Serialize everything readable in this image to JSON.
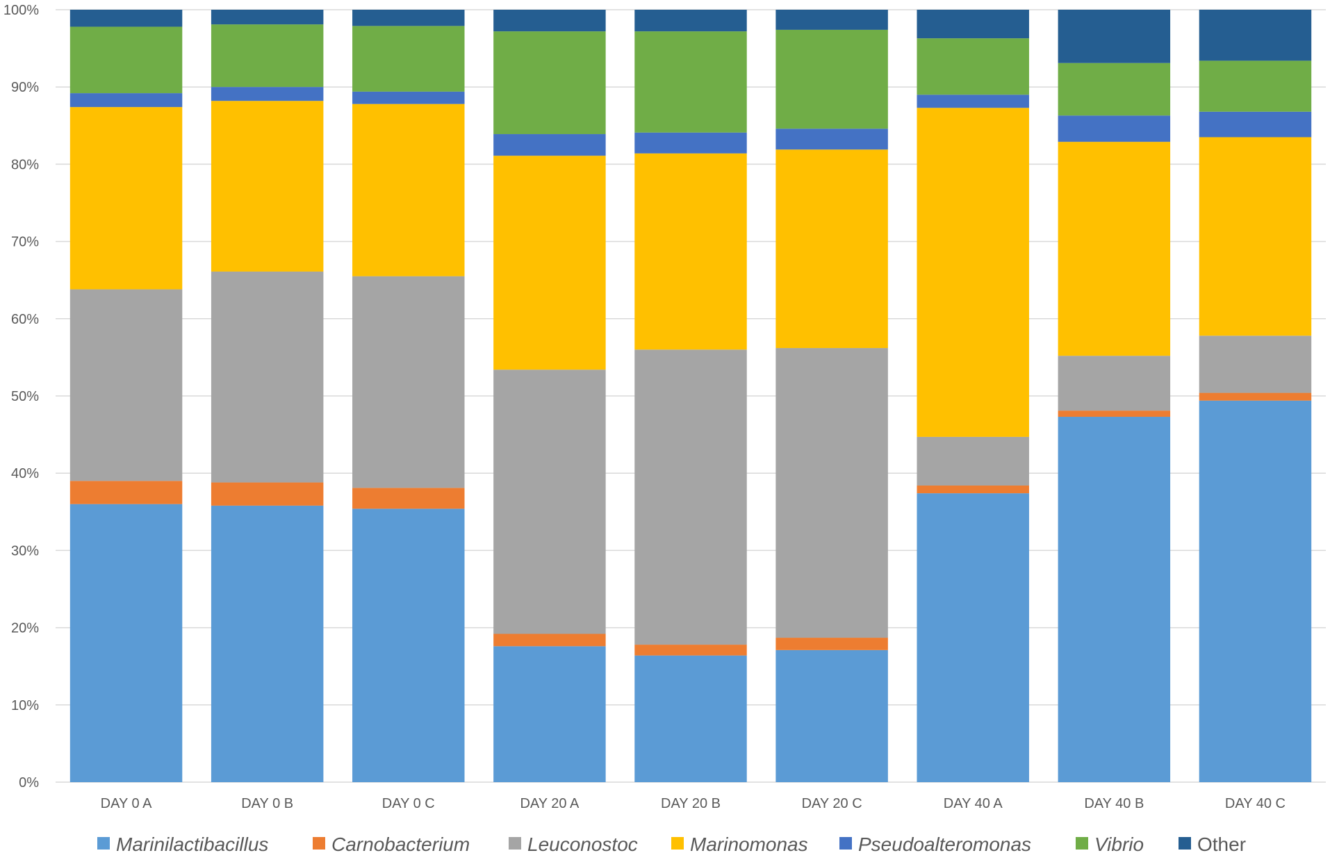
{
  "chart_data": {
    "type": "bar",
    "stacked": true,
    "percent": true,
    "title": "",
    "xlabel": "",
    "ylabel": "",
    "ylim": [
      0,
      100
    ],
    "y_ticks": [
      "0%",
      "10%",
      "20%",
      "30%",
      "40%",
      "50%",
      "60%",
      "70%",
      "80%",
      "90%",
      "100%"
    ],
    "grid": true,
    "legend_position": "bottom",
    "categories": [
      "DAY 0 A",
      "DAY 0 B",
      "DAY 0 C",
      "DAY 20 A",
      "DAY 20 B",
      "DAY 20 C",
      "DAY 40 A",
      "DAY 40 B",
      "DAY 40 C"
    ],
    "series": [
      {
        "name": "Marinilactibacillus",
        "italic": true,
        "color": "#5B9BD5",
        "values": [
          36.0,
          35.8,
          35.4,
          17.6,
          16.4,
          17.1,
          37.4,
          47.3,
          49.4
        ]
      },
      {
        "name": "Carnobacterium",
        "italic": true,
        "color": "#ED7D31",
        "values": [
          3.0,
          3.0,
          2.7,
          1.6,
          1.4,
          1.6,
          1.0,
          0.8,
          1.0
        ]
      },
      {
        "name": "Leuconostoc",
        "italic": true,
        "color": "#A5A5A5",
        "values": [
          24.8,
          27.3,
          27.4,
          34.2,
          38.2,
          37.5,
          6.3,
          7.1,
          7.4
        ]
      },
      {
        "name": "Marinomonas",
        "italic": true,
        "color": "#FFC000",
        "values": [
          23.6,
          22.1,
          22.3,
          27.7,
          25.4,
          25.7,
          42.6,
          27.7,
          25.7
        ]
      },
      {
        "name": "Pseudoalteromonas",
        "italic": true,
        "color": "#4472C4",
        "values": [
          1.8,
          1.8,
          1.6,
          2.8,
          2.7,
          2.7,
          1.7,
          3.4,
          3.3
        ]
      },
      {
        "name": "Vibrio",
        "italic": true,
        "color": "#70AD47",
        "values": [
          8.6,
          8.1,
          8.5,
          13.3,
          13.1,
          12.8,
          7.3,
          6.8,
          6.6
        ]
      },
      {
        "name": "Other",
        "italic": false,
        "color": "#255E91",
        "values": [
          2.2,
          1.9,
          2.1,
          2.8,
          2.8,
          2.6,
          3.7,
          6.9,
          6.6
        ]
      }
    ]
  }
}
